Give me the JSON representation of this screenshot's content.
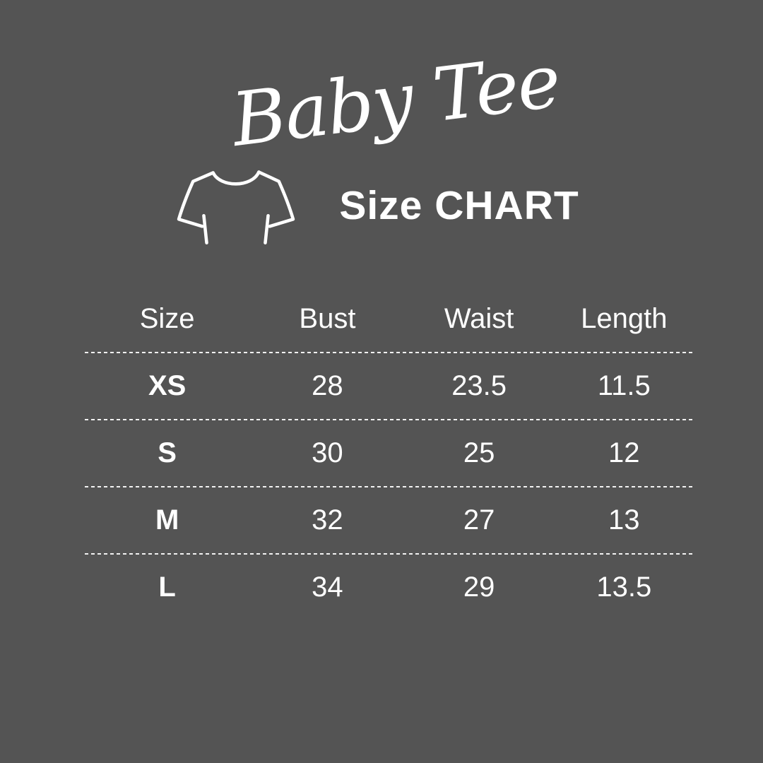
{
  "page": {
    "background_color": "#545454",
    "text_color": "#ffffff"
  },
  "header": {
    "script_title": "Baby Tee",
    "subtitle": "Size CHART",
    "icon": "tshirt-outline-icon"
  },
  "chart_data": {
    "type": "table",
    "title": "Baby Tee",
    "subtitle": "Size CHART",
    "columns": [
      "Size",
      "Bust",
      "Waist",
      "Length"
    ],
    "rows": [
      [
        "XS",
        "28",
        "23.5",
        "11.5"
      ],
      [
        "S",
        "30",
        "25",
        "12"
      ],
      [
        "M",
        "32",
        "27",
        "13"
      ],
      [
        "L",
        "34",
        "29",
        "13.5"
      ]
    ],
    "layout_hints": {
      "row_separator": "dashed-white-line",
      "first_column_bold": true,
      "grid": "horizontal-separators-only"
    }
  }
}
